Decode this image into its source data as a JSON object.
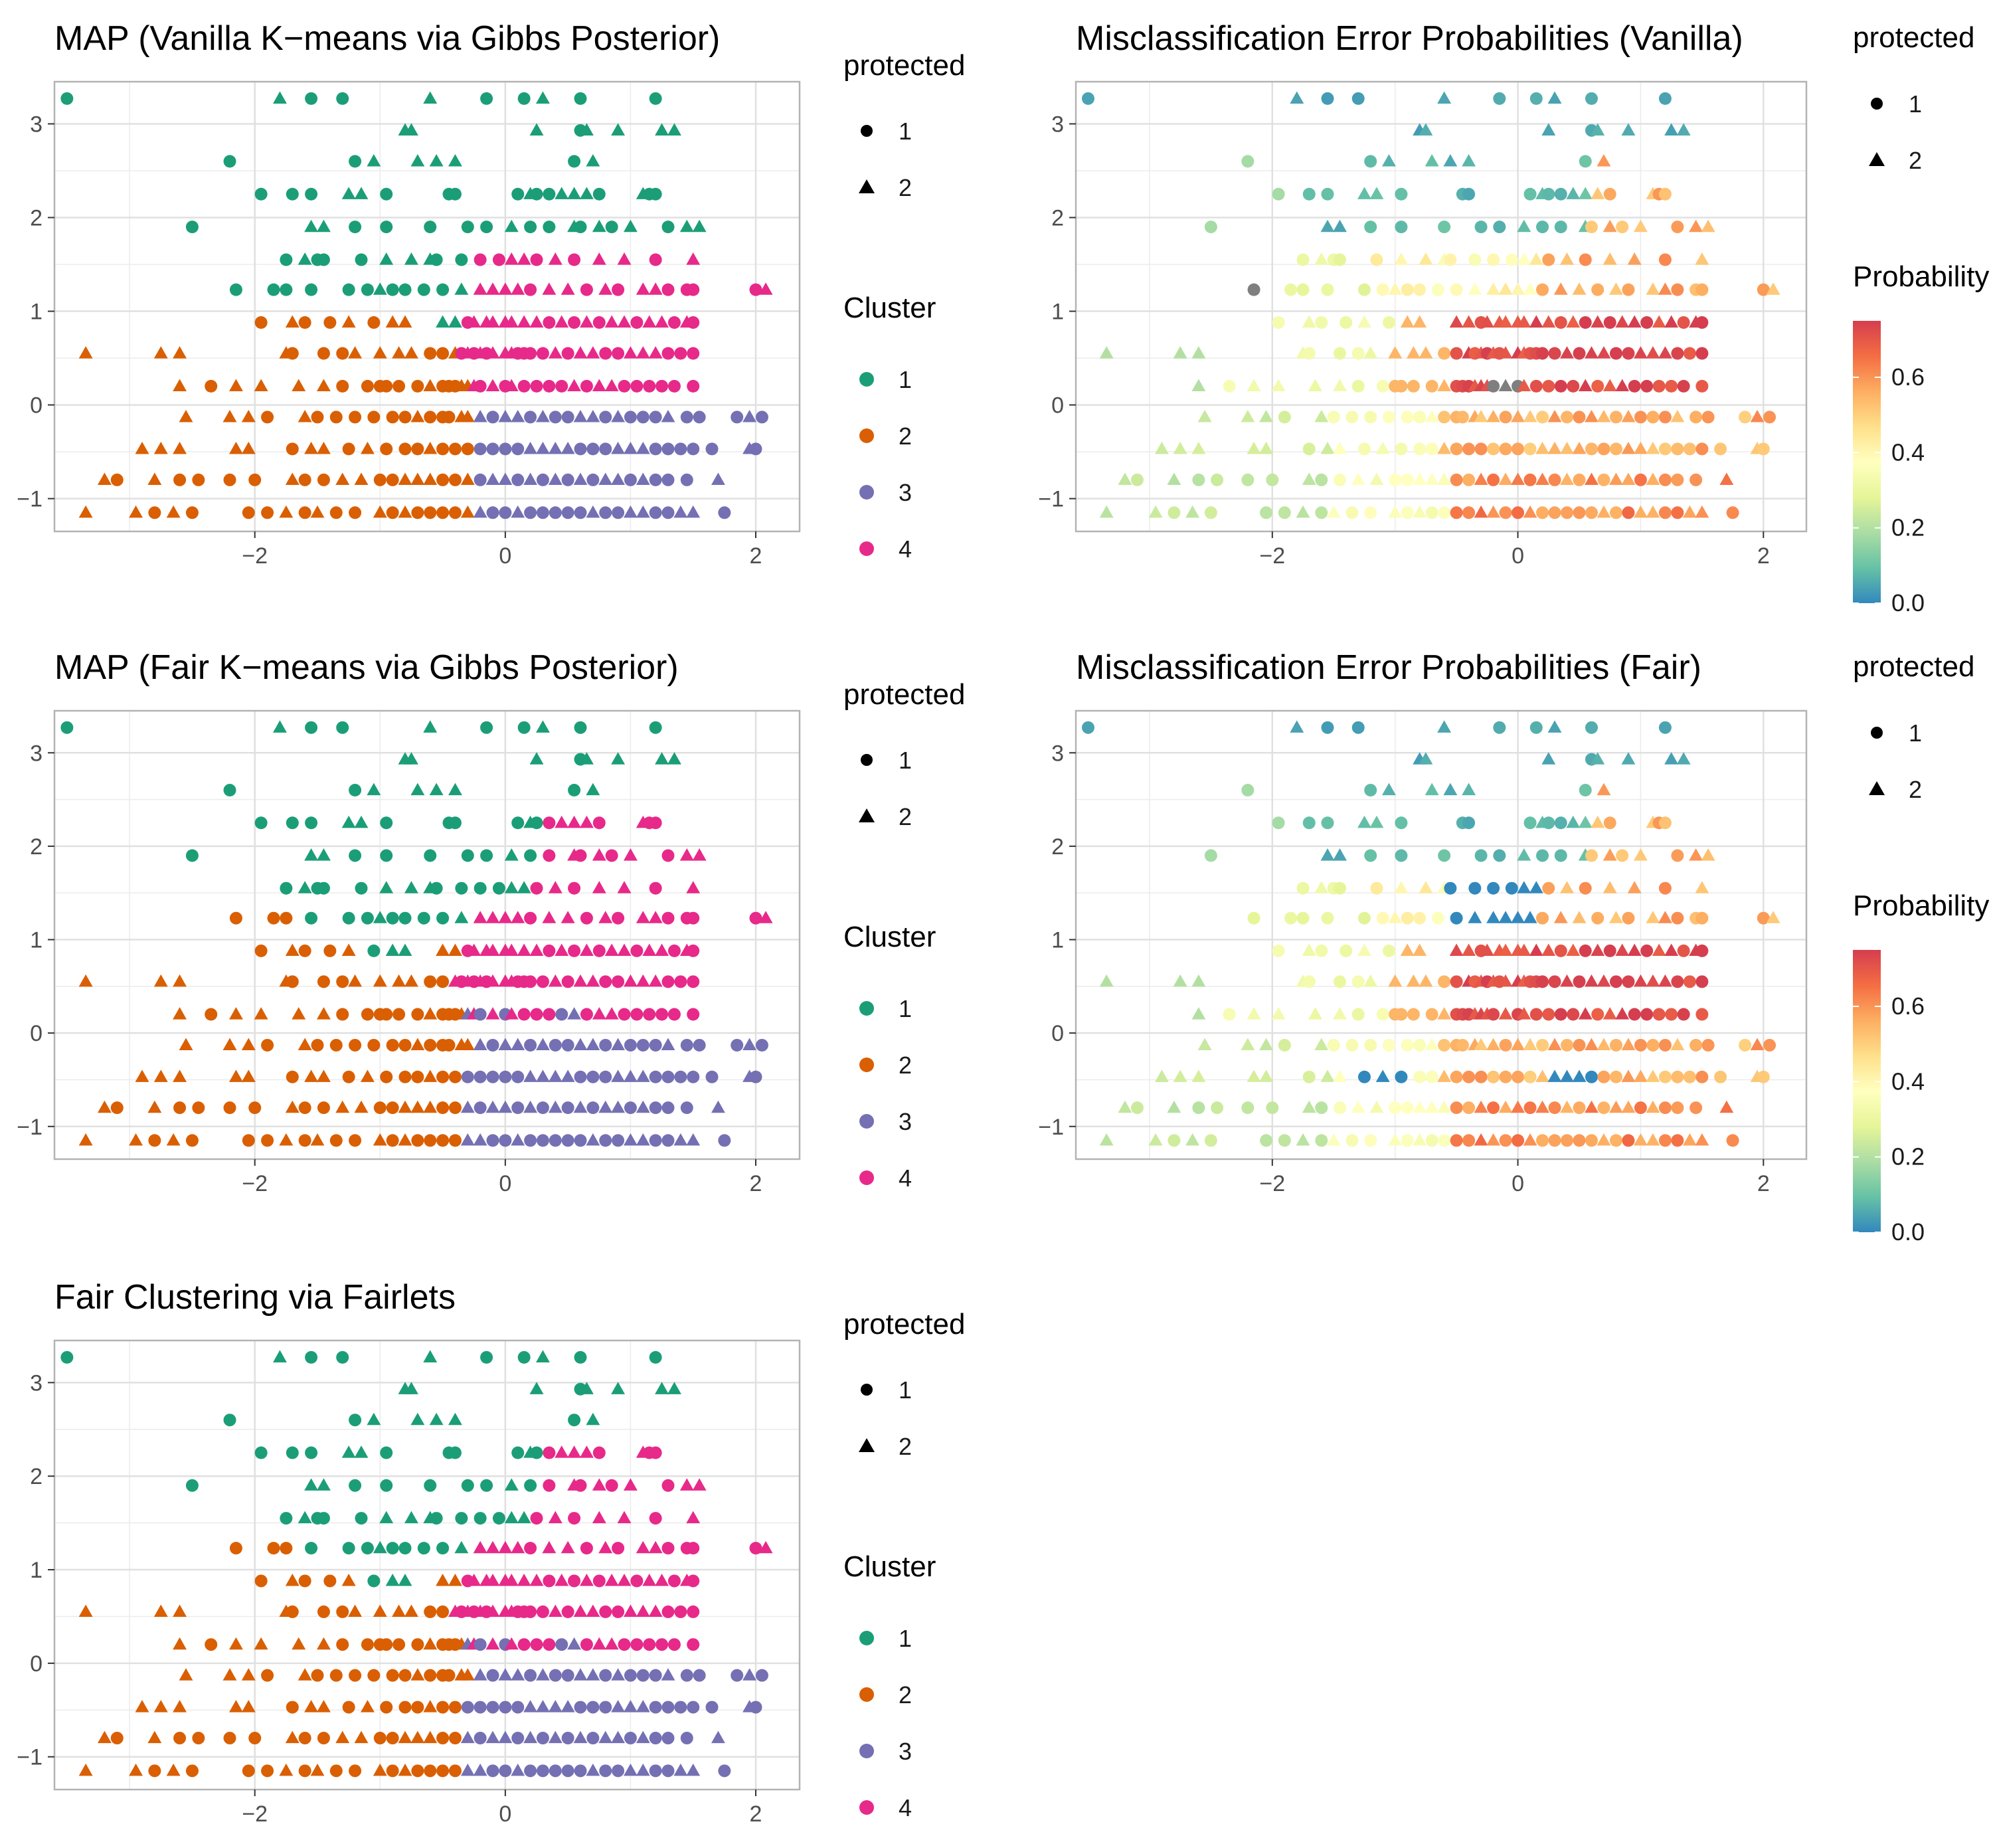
{
  "colors": {
    "cluster": {
      "1": "#1b9e77",
      "2": "#d95f02",
      "3": "#7570b3",
      "4": "#e7298a"
    },
    "probability_scale": [
      "#3288bd",
      "#66c2a5",
      "#abdda4",
      "#e6f598",
      "#ffffbf",
      "#fee08b",
      "#fdae61",
      "#f46d43",
      "#d53e4f"
    ],
    "na_gray": "#7f7f7f",
    "grid": "#ebebeb",
    "panel_border": "#b3b3b3"
  },
  "legends": {
    "protected": {
      "title": "protected",
      "items": [
        {
          "label": "1",
          "shape": "circle"
        },
        {
          "label": "2",
          "shape": "triangle"
        }
      ]
    },
    "cluster": {
      "title": "Cluster",
      "items": [
        {
          "label": "1"
        },
        {
          "label": "2"
        },
        {
          "label": "3"
        },
        {
          "label": "4"
        }
      ]
    },
    "probability": {
      "title": "Probability",
      "ticks": [
        "0.0",
        "0.2",
        "0.4",
        "0.6"
      ],
      "tick_values": [
        0,
        0.2,
        0.4,
        0.6
      ],
      "range": [
        0,
        0.75
      ]
    }
  },
  "chart_data": [
    {
      "id": "vanilla-map",
      "type": "scatter",
      "title": "MAP (Vanilla K−means via Gibbs Posterior)",
      "color_mode": "cluster",
      "variant": "vanilla",
      "x_ticks": [
        -2,
        0,
        2
      ],
      "x_tick_labels": [
        "−2",
        "0",
        "2"
      ],
      "xlim": [
        -3.6,
        2.35
      ],
      "y_ticks": [
        -1,
        0,
        1,
        2,
        3
      ],
      "y_tick_labels": [
        "−1",
        "0",
        "1",
        "2",
        "3"
      ],
      "ylim": [
        -1.35,
        3.45
      ]
    },
    {
      "id": "vanilla-error",
      "type": "scatter",
      "title": "Misclassification Error Probabilities (Vanilla)",
      "color_mode": "probability",
      "variant": "vanilla",
      "x_ticks": [
        -2,
        0,
        2
      ],
      "x_tick_labels": [
        "−2",
        "0",
        "2"
      ],
      "xlim": [
        -3.6,
        2.35
      ],
      "y_ticks": [
        -1,
        0,
        1,
        2,
        3
      ],
      "y_tick_labels": [
        "−1",
        "0",
        "1",
        "2",
        "3"
      ],
      "ylim": [
        -1.35,
        3.45
      ]
    },
    {
      "id": "fair-map",
      "type": "scatter",
      "title": "MAP (Fair K−means via Gibbs Posterior)",
      "color_mode": "cluster",
      "variant": "fair",
      "x_ticks": [
        -2,
        0,
        2
      ],
      "x_tick_labels": [
        "−2",
        "0",
        "2"
      ],
      "xlim": [
        -3.6,
        2.35
      ],
      "y_ticks": [
        -1,
        0,
        1,
        2,
        3
      ],
      "y_tick_labels": [
        "−1",
        "0",
        "1",
        "2",
        "3"
      ],
      "ylim": [
        -1.35,
        3.45
      ]
    },
    {
      "id": "fair-error",
      "type": "scatter",
      "title": "Misclassification Error Probabilities (Fair)",
      "color_mode": "probability",
      "variant": "fair",
      "x_ticks": [
        -2,
        0,
        2
      ],
      "x_tick_labels": [
        "−2",
        "0",
        "2"
      ],
      "xlim": [
        -3.6,
        2.35
      ],
      "y_ticks": [
        -1,
        0,
        1,
        2,
        3
      ],
      "y_tick_labels": [
        "−1",
        "0",
        "1",
        "2",
        "3"
      ],
      "ylim": [
        -1.35,
        3.45
      ]
    },
    {
      "id": "fairlets",
      "type": "scatter",
      "title": "Fair Clustering via Fairlets",
      "color_mode": "cluster",
      "variant": "fairlets",
      "x_ticks": [
        -2,
        0,
        2
      ],
      "x_tick_labels": [
        "−2",
        "0",
        "2"
      ],
      "xlim": [
        -3.6,
        2.35
      ],
      "y_ticks": [
        -1,
        0,
        1,
        2,
        3
      ],
      "y_tick_labels": [
        "−1",
        "0",
        "1",
        "2",
        "3"
      ],
      "ylim": [
        -1.35,
        3.45
      ]
    }
  ],
  "points": {
    "y_levels": [
      3.27,
      2.93,
      2.6,
      2.25,
      1.9,
      1.55,
      1.23,
      0.88,
      0.55,
      0.2,
      -0.13,
      -0.47,
      -0.8,
      -1.15
    ],
    "xs": [
      [
        -3.5,
        -1.8,
        -1.55,
        -1.3,
        -0.6,
        -0.15,
        0.15,
        0.3,
        0.6,
        1.2
      ],
      [
        -0.8,
        -0.75,
        0.25,
        0.6,
        0.65,
        0.9,
        1.25,
        1.35
      ],
      [
        -2.2,
        -1.2,
        -1.05,
        -0.7,
        -0.55,
        -0.4,
        0.55,
        0.7
      ],
      [
        -1.95,
        -1.7,
        -1.55,
        -1.25,
        -1.15,
        -0.95,
        -0.45,
        -0.4,
        0.1,
        0.2,
        0.25,
        0.35,
        0.45,
        0.55,
        0.65,
        0.75,
        1.1,
        1.15,
        1.2
      ],
      [
        -2.5,
        -1.55,
        -1.45,
        -1.2,
        -0.95,
        -0.6,
        -0.3,
        -0.15,
        0.05,
        0.2,
        0.35,
        0.55,
        0.6,
        0.75,
        0.85,
        1.0,
        1.3,
        1.45,
        1.55
      ],
      [
        -1.75,
        -1.6,
        -1.5,
        -1.45,
        -1.15,
        -0.95,
        -0.75,
        -0.6,
        -0.55,
        -0.35,
        -0.2,
        -0.05,
        0.05,
        0.15,
        0.25,
        0.4,
        0.55,
        0.75,
        0.95,
        1.2,
        1.5
      ],
      [
        -2.15,
        -1.85,
        -1.75,
        -1.55,
        -1.25,
        -1.1,
        -1.0,
        -0.9,
        -0.8,
        -0.65,
        -0.5,
        -0.35,
        -0.2,
        -0.1,
        0.0,
        0.1,
        0.2,
        0.35,
        0.5,
        0.65,
        0.8,
        0.9,
        1.1,
        1.2,
        1.3,
        1.45,
        1.5,
        2.0,
        2.08
      ],
      [
        -1.95,
        -1.7,
        -1.6,
        -1.4,
        -1.25,
        -1.05,
        -0.9,
        -0.8,
        -0.5,
        -0.4,
        -0.3,
        -0.25,
        -0.15,
        -0.1,
        0.0,
        0.05,
        0.15,
        0.25,
        0.35,
        0.45,
        0.55,
        0.65,
        0.75,
        0.85,
        0.95,
        1.05,
        1.15,
        1.25,
        1.35,
        1.45,
        1.5
      ],
      [
        -3.35,
        -2.75,
        -2.6,
        -1.75,
        -1.7,
        -1.45,
        -1.3,
        -1.2,
        -1.0,
        -0.85,
        -0.75,
        -0.6,
        -0.5,
        -0.4,
        -0.35,
        -0.3,
        -0.25,
        -0.2,
        -0.15,
        -0.1,
        0.0,
        0.05,
        0.1,
        0.15,
        0.2,
        0.3,
        0.4,
        0.5,
        0.6,
        0.7,
        0.8,
        0.9,
        1.0,
        1.1,
        1.2,
        1.3,
        1.4,
        1.5
      ],
      [
        -2.6,
        -2.35,
        -2.15,
        -1.95,
        -1.65,
        -1.45,
        -1.3,
        -1.1,
        -1.0,
        -0.95,
        -0.85,
        -0.7,
        -0.6,
        -0.5,
        -0.45,
        -0.4,
        -0.35,
        -0.3,
        -0.25,
        -0.2,
        -0.1,
        0.0,
        0.05,
        0.15,
        0.25,
        0.35,
        0.45,
        0.55,
        0.65,
        0.75,
        0.85,
        0.95,
        1.05,
        1.15,
        1.25,
        1.35,
        1.5
      ],
      [
        -2.55,
        -2.2,
        -2.05,
        -1.9,
        -1.6,
        -1.5,
        -1.35,
        -1.2,
        -1.05,
        -0.9,
        -0.8,
        -0.7,
        -0.6,
        -0.5,
        -0.45,
        -0.35,
        -0.3,
        -0.2,
        -0.1,
        0.0,
        0.1,
        0.2,
        0.3,
        0.4,
        0.5,
        0.6,
        0.7,
        0.8,
        0.9,
        1.0,
        1.1,
        1.2,
        1.3,
        1.45,
        1.55,
        1.85,
        1.95,
        2.05
      ],
      [
        -2.9,
        -2.75,
        -2.6,
        -2.15,
        -2.05,
        -1.7,
        -1.55,
        -1.45,
        -1.25,
        -1.1,
        -0.95,
        -0.8,
        -0.7,
        -0.6,
        -0.5,
        -0.4,
        -0.3,
        -0.2,
        -0.1,
        0.0,
        0.1,
        0.2,
        0.3,
        0.4,
        0.5,
        0.6,
        0.7,
        0.8,
        0.9,
        1.0,
        1.1,
        1.2,
        1.3,
        1.4,
        1.5,
        1.65,
        1.95,
        2.0
      ],
      [
        -3.2,
        -3.1,
        -2.8,
        -2.6,
        -2.45,
        -2.2,
        -2.0,
        -1.7,
        -1.6,
        -1.45,
        -1.3,
        -1.15,
        -1.0,
        -0.9,
        -0.8,
        -0.7,
        -0.6,
        -0.5,
        -0.4,
        -0.3,
        -0.2,
        -0.1,
        0.0,
        0.1,
        0.2,
        0.3,
        0.4,
        0.5,
        0.6,
        0.7,
        0.8,
        0.9,
        1.0,
        1.1,
        1.2,
        1.3,
        1.45,
        1.7
      ],
      [
        -3.35,
        -2.95,
        -2.8,
        -2.65,
        -2.5,
        -2.05,
        -1.9,
        -1.75,
        -1.6,
        -1.5,
        -1.35,
        -1.2,
        -1.0,
        -0.9,
        -0.8,
        -0.7,
        -0.6,
        -0.5,
        -0.4,
        -0.3,
        -0.2,
        -0.1,
        0.0,
        0.1,
        0.2,
        0.3,
        0.4,
        0.5,
        0.6,
        0.7,
        0.8,
        0.9,
        1.0,
        1.1,
        1.2,
        1.3,
        1.4,
        1.5,
        1.75
      ]
    ]
  }
}
